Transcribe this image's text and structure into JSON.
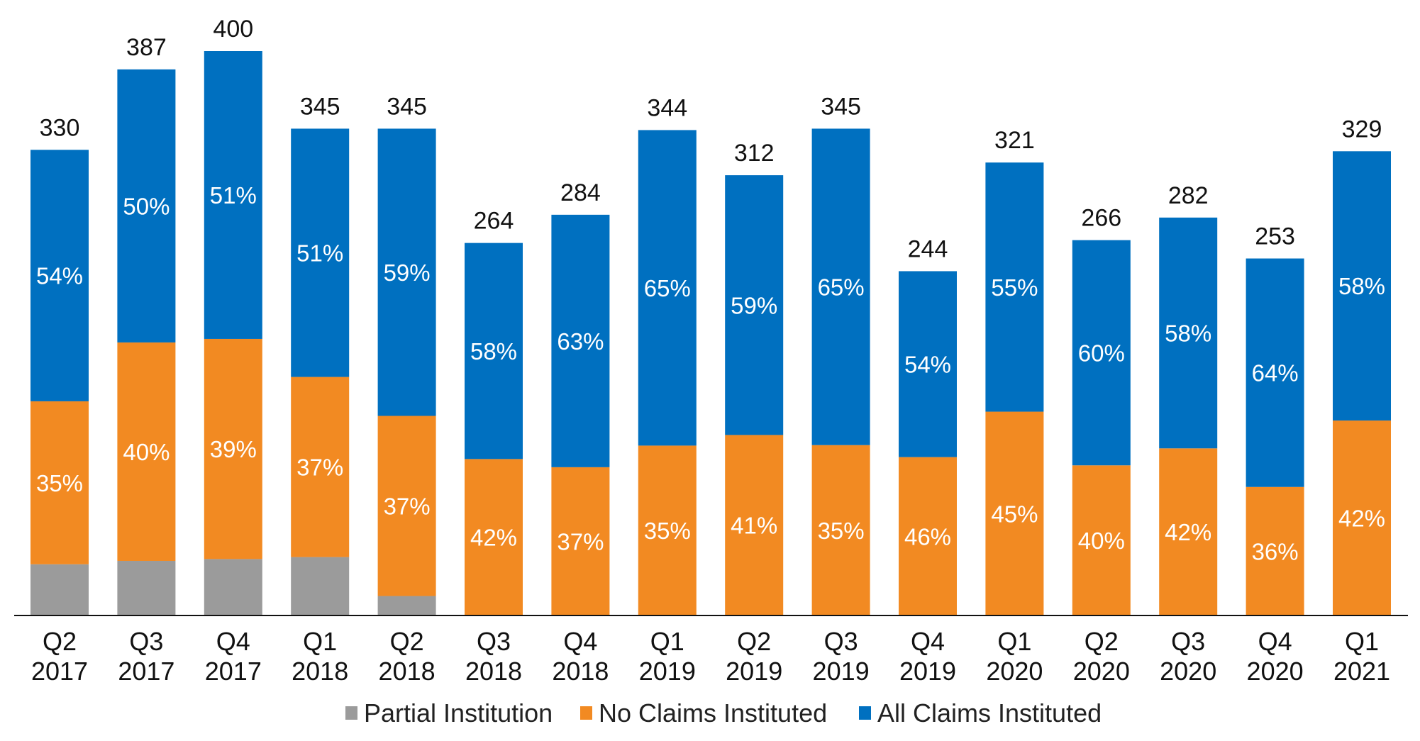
{
  "chart_data": {
    "type": "bar",
    "stacked": true,
    "categories": [
      [
        "Q2",
        "2017"
      ],
      [
        "Q3",
        "2017"
      ],
      [
        "Q4",
        "2017"
      ],
      [
        "Q1",
        "2018"
      ],
      [
        "Q2",
        "2018"
      ],
      [
        "Q3",
        "2018"
      ],
      [
        "Q4",
        "2018"
      ],
      [
        "Q1",
        "2019"
      ],
      [
        "Q2",
        "2019"
      ],
      [
        "Q3",
        "2019"
      ],
      [
        "Q4",
        "2019"
      ],
      [
        "Q1",
        "2020"
      ],
      [
        "Q2",
        "2020"
      ],
      [
        "Q3",
        "2020"
      ],
      [
        "Q4",
        "2020"
      ],
      [
        "Q1",
        "2021"
      ]
    ],
    "totals": [
      330,
      387,
      400,
      345,
      345,
      264,
      284,
      344,
      312,
      345,
      244,
      321,
      266,
      282,
      253,
      329
    ],
    "series": [
      {
        "name": "Partial Institution",
        "color": "#9b9b9b",
        "percents": [
          11,
          10,
          10,
          12,
          4,
          0,
          0,
          0,
          0,
          0,
          0,
          0,
          0,
          0,
          0,
          0
        ],
        "labels": [
          "",
          "",
          "",
          "",
          "",
          "",
          "",
          "",
          "",
          "",
          "",
          "",
          "",
          "",
          "",
          ""
        ]
      },
      {
        "name": "No Claims Instituted",
        "color": "#f28a22",
        "percents": [
          35,
          40,
          39,
          37,
          37,
          42,
          37,
          35,
          41,
          35,
          46,
          45,
          40,
          42,
          36,
          42
        ],
        "labels": [
          "35%",
          "40%",
          "39%",
          "37%",
          "37%",
          "42%",
          "37%",
          "35%",
          "41%",
          "35%",
          "46%",
          "45%",
          "40%",
          "42%",
          "36%",
          "42%"
        ]
      },
      {
        "name": "All Claims Instituted",
        "color": "#0070c0",
        "percents": [
          54,
          50,
          51,
          51,
          59,
          58,
          63,
          65,
          59,
          65,
          54,
          55,
          60,
          58,
          64,
          58
        ],
        "labels": [
          "54%",
          "50%",
          "51%",
          "51%",
          "59%",
          "58%",
          "63%",
          "65%",
          "59%",
          "65%",
          "54%",
          "55%",
          "60%",
          "58%",
          "64%",
          "58%"
        ]
      }
    ],
    "ylim": [
      0,
      400
    ],
    "grid": false,
    "legend_position": "bottom",
    "title": "",
    "xlabel": "",
    "ylabel": ""
  }
}
